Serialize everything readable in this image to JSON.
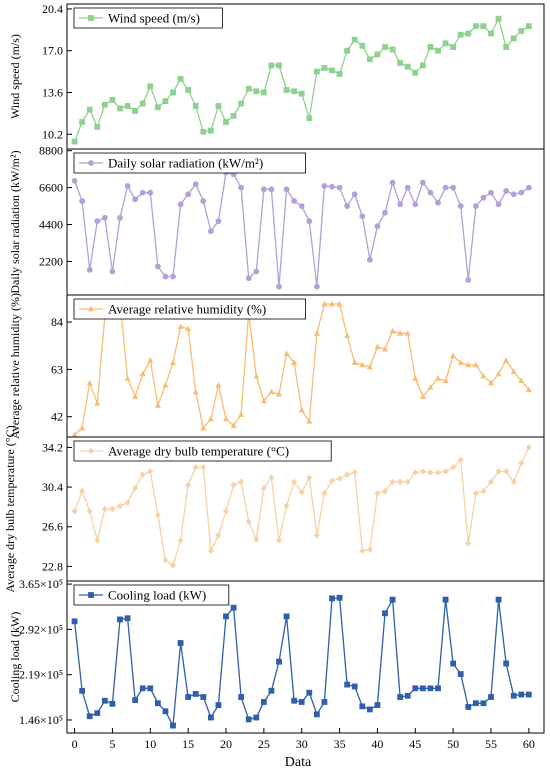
{
  "chart_data": {
    "type": "line",
    "xlabel": "Data",
    "x": [
      0,
      1,
      2,
      3,
      4,
      5,
      6,
      7,
      8,
      9,
      10,
      11,
      12,
      13,
      14,
      15,
      16,
      17,
      18,
      19,
      20,
      21,
      22,
      23,
      24,
      25,
      26,
      27,
      28,
      29,
      30,
      31,
      32,
      33,
      34,
      35,
      36,
      37,
      38,
      39,
      40,
      41,
      42,
      43,
      44,
      45,
      46,
      47,
      48,
      49,
      50,
      51,
      52,
      53,
      54,
      55,
      56,
      57,
      58,
      59,
      60
    ],
    "xlim": [
      -1,
      62
    ],
    "xticks": [
      0,
      5,
      10,
      15,
      20,
      25,
      30,
      35,
      40,
      45,
      50,
      55,
      60
    ],
    "xtick_labels": [
      "0",
      "5",
      "10",
      "15",
      "20",
      "25",
      "30",
      "35",
      "40",
      "45",
      "50",
      "55",
      "60"
    ],
    "panels": [
      {
        "name": "Wind speed (m/s)",
        "ylabel": "Wind speed (m/s)",
        "color": "#8fd18f",
        "marker": "square",
        "ylim": [
          9.0,
          20.8
        ],
        "yticks": [
          10.2,
          13.6,
          17.0,
          20.4
        ],
        "ytick_labels": [
          "10.2",
          "13.6",
          "17.0",
          "20.4"
        ],
        "values": [
          9.6,
          11.2,
          12.2,
          10.8,
          12.6,
          13.0,
          12.3,
          12.5,
          12.1,
          12.7,
          14.1,
          12.4,
          12.9,
          13.6,
          14.7,
          13.8,
          12.5,
          10.4,
          10.5,
          12.5,
          11.2,
          11.7,
          12.7,
          13.9,
          13.7,
          13.6,
          15.8,
          15.8,
          13.8,
          13.7,
          13.5,
          11.5,
          15.3,
          15.6,
          15.4,
          15.1,
          17.0,
          17.9,
          17.4,
          16.3,
          16.7,
          17.3,
          17.1,
          16.0,
          15.7,
          15.2,
          15.8,
          17.3,
          17.0,
          17.6,
          17.3,
          18.3,
          18.4,
          19.0,
          19.0,
          18.4,
          19.6,
          17.3,
          18.0,
          18.6,
          19.0
        ]
      },
      {
        "name": "Daily solar radiation (kW/m²)",
        "ylabel": "Daily solar radiation (kW/m²)",
        "color": "#b49fd7",
        "marker": "circle",
        "ylim": [
          200,
          8900
        ],
        "yticks": [
          2200,
          4400,
          6600,
          8800
        ],
        "ytick_labels": [
          "2200",
          "4400",
          "6600",
          "8800"
        ],
        "values": [
          7000,
          5800,
          1700,
          4600,
          4800,
          1600,
          4800,
          6700,
          5900,
          6300,
          6300,
          1900,
          1300,
          1300,
          5600,
          6200,
          6800,
          5800,
          4000,
          4600,
          7500,
          7400,
          6600,
          1200,
          1600,
          6500,
          6500,
          700,
          6500,
          5800,
          5500,
          4600,
          700,
          6700,
          6650,
          6600,
          5500,
          6200,
          4900,
          2300,
          4300,
          5100,
          6900,
          5600,
          6600,
          5600,
          6900,
          6300,
          5700,
          6600,
          6600,
          5500,
          1100,
          5500,
          6000,
          6300,
          5600,
          6400,
          6200,
          6300,
          6600
        ]
      },
      {
        "name": "Average relative humidity (%)",
        "ylabel": "Average relative humidity (%)",
        "color": "#f7bd72",
        "marker": "triangle",
        "ylim": [
          33,
          96
        ],
        "yticks": [
          42,
          63,
          84
        ],
        "ytick_labels": [
          "42",
          "63",
          "84"
        ],
        "values": [
          34,
          37,
          57,
          48,
          87,
          93,
          93,
          59,
          51,
          61,
          67,
          47,
          56,
          66,
          82,
          81,
          53,
          37,
          41,
          56,
          41,
          38,
          43,
          88,
          60,
          49,
          53,
          52,
          70,
          66,
          45,
          40,
          79,
          92,
          92,
          92,
          78,
          66,
          65,
          64,
          73,
          72,
          80,
          79,
          79,
          59,
          51,
          55,
          59,
          58,
          69,
          66,
          65,
          65,
          60,
          57,
          61,
          67,
          62,
          58,
          54
        ]
      },
      {
        "name": "Average dry bulb temperature (°C)",
        "ylabel": "Average dry bulb temperature (°C)",
        "color": "#f7d2a6",
        "marker": "diamond",
        "ylim": [
          21.4,
          35.2
        ],
        "yticks": [
          22.8,
          26.6,
          30.4,
          34.2
        ],
        "ytick_labels": [
          "22.8",
          "26.6",
          "30.4",
          "34.2"
        ],
        "values": [
          28.1,
          30.0,
          28.1,
          25.3,
          28.3,
          28.3,
          28.6,
          28.9,
          30.3,
          31.6,
          31.9,
          27.7,
          23.4,
          22.9,
          25.3,
          30.6,
          32.3,
          32.3,
          24.3,
          25.8,
          28.1,
          30.6,
          30.9,
          27.1,
          25.4,
          30.3,
          31.3,
          25.3,
          28.6,
          30.9,
          29.9,
          31.3,
          25.8,
          29.8,
          31.0,
          31.2,
          31.6,
          31.8,
          24.3,
          24.4,
          29.8,
          30.0,
          30.9,
          30.9,
          30.9,
          31.8,
          31.9,
          31.8,
          31.8,
          31.9,
          32.3,
          33.0,
          25.0,
          29.8,
          30.0,
          30.9,
          31.9,
          31.9,
          30.9,
          32.7,
          34.2
        ]
      },
      {
        "name": "Cooling load (kW)",
        "ylabel": "Cooling load (kW)",
        "color": "#2f5fa8",
        "marker": "square",
        "ylim": [
          125000,
          370000
        ],
        "yticks": [
          146000,
          219000,
          292000,
          365000
        ],
        "ytick_labels": [
          "1.46×10⁵",
          "2.19×10⁵",
          "2.92×10⁵",
          "3.65×10⁵"
        ],
        "values": [
          305000,
          193000,
          152000,
          157000,
          177000,
          172000,
          308000,
          310000,
          178000,
          197000,
          197000,
          173000,
          160000,
          137000,
          270000,
          183000,
          188000,
          183000,
          150000,
          170000,
          313000,
          327000,
          183000,
          147000,
          150000,
          175000,
          193000,
          240000,
          313000,
          177000,
          175000,
          190000,
          155000,
          175000,
          342000,
          343000,
          203000,
          200000,
          168000,
          163000,
          170000,
          318000,
          340000,
          183000,
          185000,
          197000,
          197000,
          197000,
          197000,
          340000,
          237000,
          220000,
          167000,
          173000,
          173000,
          183000,
          340000,
          237000,
          185000,
          187000,
          187000
        ]
      }
    ]
  }
}
